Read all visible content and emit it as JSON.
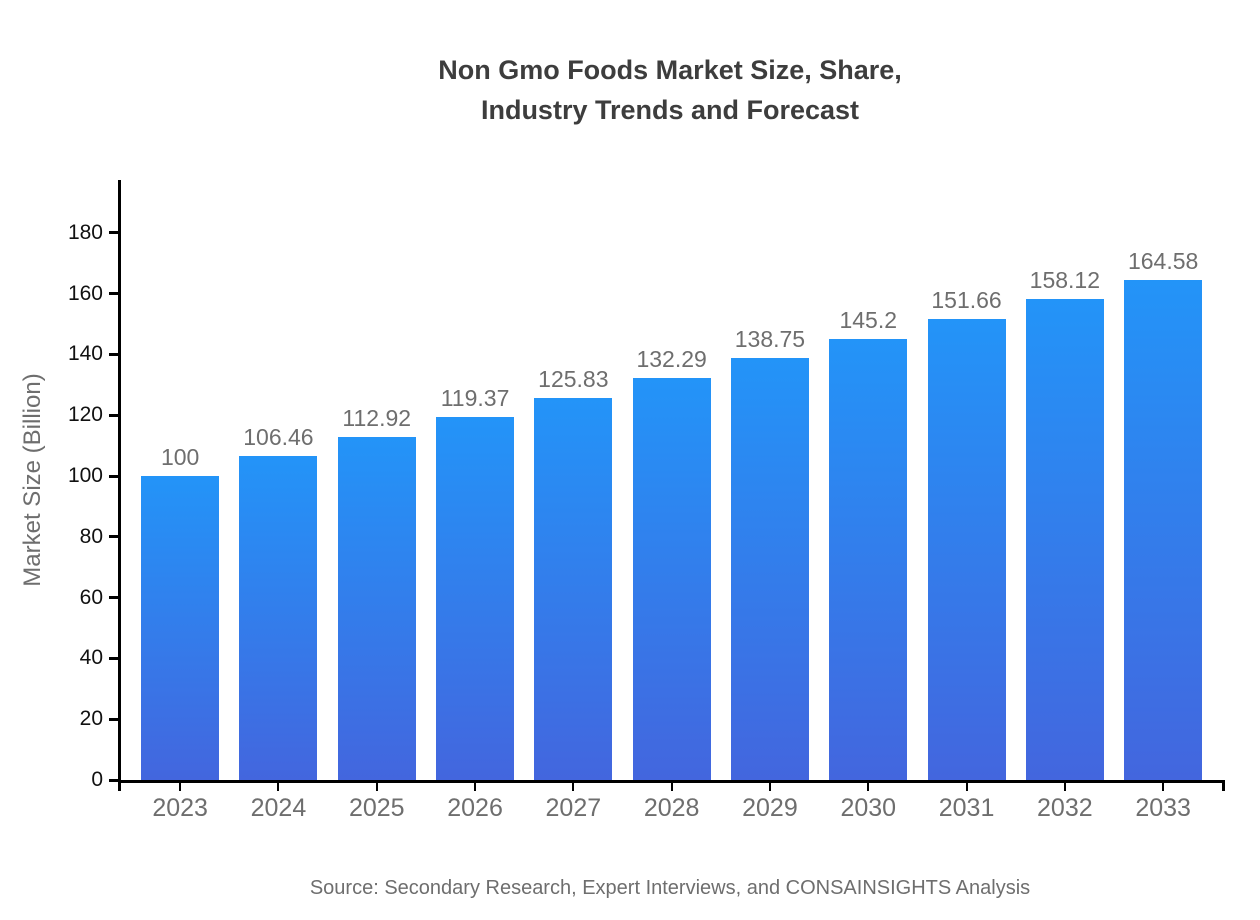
{
  "title": {
    "line1": "Non Gmo Foods Market Size, Share,",
    "line2": "Industry Trends and Forecast"
  },
  "source": "Source: Secondary Research, Expert Interviews, and CONSAINSIGHTS Analysis",
  "chart_data": {
    "type": "bar",
    "title": "Non Gmo Foods Market Size, Share, Industry Trends and Forecast",
    "categories": [
      "2023",
      "2024",
      "2025",
      "2026",
      "2027",
      "2028",
      "2029",
      "2030",
      "2031",
      "2032",
      "2033"
    ],
    "values": [
      100,
      106.46,
      112.92,
      119.37,
      125.83,
      132.29,
      138.75,
      145.2,
      151.66,
      158.12,
      164.58
    ],
    "value_labels": [
      "100",
      "106.46",
      "112.92",
      "119.37",
      "125.83",
      "132.29",
      "138.75",
      "145.2",
      "151.66",
      "158.12",
      "164.58"
    ],
    "xlabel": "",
    "ylabel": "Market Size (Billion)",
    "yticks": [
      0,
      20,
      40,
      60,
      80,
      100,
      120,
      140,
      160,
      180
    ],
    "ylim": [
      0,
      197.4
    ],
    "grid": false,
    "legend": "none",
    "colors": {
      "bar_gradient_top": "#2394f8",
      "bar_gradient_bottom": "#4366de",
      "axis": "#000000",
      "title_text": "#3d3d3d",
      "tick_label_y": "#111111",
      "tick_label_x": "#6e6e6e",
      "value_label": "#6e6e6e",
      "source_text": "#6e6e6e"
    }
  }
}
